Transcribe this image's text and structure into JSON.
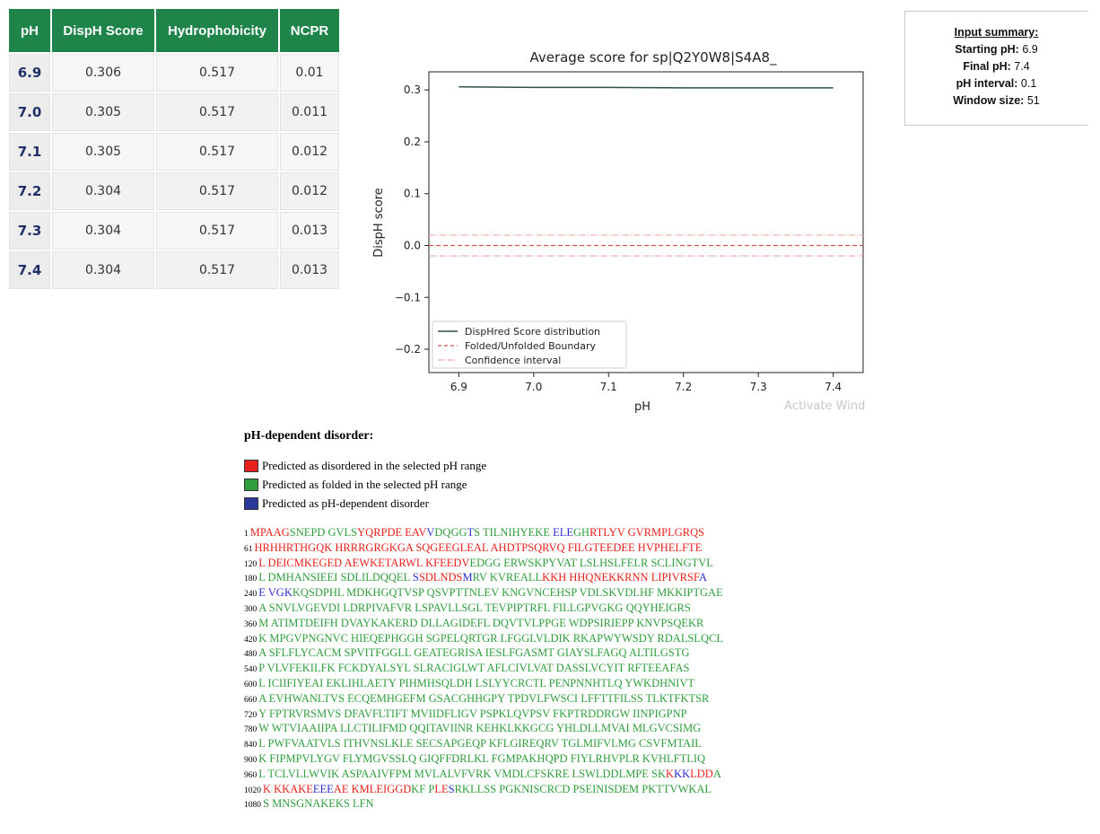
{
  "table": {
    "headers": [
      "pH",
      "DispH Score",
      "Hydrophobicity",
      "NCPR"
    ],
    "rows": [
      {
        "ph": "6.9",
        "disph": "0.306",
        "hydro": "0.517",
        "ncpr": "0.01"
      },
      {
        "ph": "7.0",
        "disph": "0.305",
        "hydro": "0.517",
        "ncpr": "0.011"
      },
      {
        "ph": "7.1",
        "disph": "0.305",
        "hydro": "0.517",
        "ncpr": "0.012"
      },
      {
        "ph": "7.2",
        "disph": "0.304",
        "hydro": "0.517",
        "ncpr": "0.012"
      },
      {
        "ph": "7.3",
        "disph": "0.304",
        "hydro": "0.517",
        "ncpr": "0.013"
      },
      {
        "ph": "7.4",
        "disph": "0.304",
        "hydro": "0.517",
        "ncpr": "0.013"
      }
    ]
  },
  "summary": {
    "title": "Input summary:",
    "items": [
      {
        "label": "Starting pH:",
        "value": "6.9"
      },
      {
        "label": "Final pH:",
        "value": "7.4"
      },
      {
        "label": "pH interval:",
        "value": "0.1"
      },
      {
        "label": "Window size:",
        "value": "51"
      }
    ]
  },
  "chart_data": {
    "type": "line",
    "title": "Average score for sp|Q2Y0W8|S4A8_",
    "xlabel": "pH",
    "ylabel": "DispH score",
    "xlim": [
      6.86,
      7.44
    ],
    "ylim": [
      -0.245,
      0.335
    ],
    "x_ticks": [
      6.9,
      7.0,
      7.1,
      7.2,
      7.3,
      7.4
    ],
    "x_tick_labels": [
      "6.9",
      "7.0",
      "7.1",
      "7.2",
      "7.3",
      "7.4"
    ],
    "y_ticks": [
      -0.2,
      -0.1,
      0.0,
      0.1,
      0.2,
      0.3
    ],
    "y_tick_labels": [
      "−0.2",
      "−0.1",
      "0.0",
      "0.1",
      "0.2",
      "0.3"
    ],
    "grid": false,
    "legend_position": "lower-left",
    "series": [
      {
        "name": "DispHred Score distribution",
        "style": "solid",
        "color": "#2f4f4f",
        "x": [
          6.9,
          7.0,
          7.1,
          7.2,
          7.3,
          7.4
        ],
        "y": [
          0.306,
          0.305,
          0.305,
          0.304,
          0.304,
          0.304
        ]
      },
      {
        "name": "Folded/Unfolded Boundary",
        "style": "dashed",
        "color": "#d9534f",
        "y_const": 0.0
      },
      {
        "name": "Confidence interval",
        "style": "dashdot",
        "color": "#f0a8a0",
        "y_const": [
          0.02,
          -0.02
        ]
      }
    ],
    "watermark": "Activate Windows"
  },
  "disorder": {
    "title": "pH-dependent disorder:",
    "legend": [
      {
        "color": "#e8221c",
        "label": "Predicted as disordered in the selected pH range"
      },
      {
        "color": "#2f9e3d",
        "label": "Predicted as folded in the selected pH range"
      },
      {
        "color": "#2b3a9a",
        "label": "Predicted as pH-dependent disorder"
      }
    ],
    "colors": {
      "r": "#e8221c",
      "g": "#2f9e3d",
      "b": "#2b2fd0"
    },
    "lines": [
      {
        "num": "1",
        "segs": [
          [
            "r",
            "MPAAG"
          ],
          [
            "g",
            "SNEPD GVLS"
          ],
          [
            "r",
            "YQRPDE EAV"
          ],
          [
            "b",
            "V"
          ],
          [
            "g",
            "DQGG"
          ],
          [
            "b",
            "T"
          ],
          [
            "g",
            "S TILNIHYEKE "
          ],
          [
            "b",
            "ELE"
          ],
          [
            "g",
            "GH"
          ],
          [
            "r",
            "RTLYV GVRMPLGRQS"
          ]
        ]
      },
      {
        "num": "61",
        "segs": [
          [
            "r",
            "HRHHRTHGQK HRRRGRGKGA SQGEEGLEAL AHDTPSQRVQ FILGTEEDEE HVPHELFTE"
          ]
        ]
      },
      {
        "num": "120",
        "segs": [
          [
            "r",
            "L DEICMKEGED AEWKETARWL KFEEDV"
          ],
          [
            "g",
            "EDGG ERWSKPYVAT LSLHSLFELR SCLINGTVL"
          ]
        ]
      },
      {
        "num": "180",
        "segs": [
          [
            "g",
            "L DMHANSIEEI SDLILDQQEL "
          ],
          [
            "b",
            "S"
          ],
          [
            "r",
            "SDLNDS"
          ],
          [
            "b",
            "M"
          ],
          [
            "g",
            "RV KVREALL"
          ],
          [
            "r",
            "KKH HHQNEKKRNN LIPIVRSF"
          ],
          [
            "b",
            "A"
          ]
        ]
      },
      {
        "num": "240",
        "segs": [
          [
            "b",
            "E VGK"
          ],
          [
            "g",
            "KQSDPHL MDKHGQTVSP QSVPTTNLEV KNGVNCEHSP VDLSKVDLHF MKKIPTGAE"
          ]
        ]
      },
      {
        "num": "300",
        "segs": [
          [
            "g",
            "A SNVLVGEVDI LDRPIVAFVR LSPAVLLSGL TEVPIPTRFL FILLGPVGKG QQYHEIGRS"
          ]
        ]
      },
      {
        "num": "360",
        "segs": [
          [
            "g",
            "M ATIMTDEIFH DVAYKAKERD DLLAGIDEFL DQVTVLPPGE WDPSIRIEPP KNVPSQEKR"
          ]
        ]
      },
      {
        "num": "420",
        "segs": [
          [
            "g",
            "K MPGVPNGNVC HIEQEPHGGH SGPELQRTGR LFGGLVLDIK RKAPWYWSDY RDALSLQCL"
          ]
        ]
      },
      {
        "num": "480",
        "segs": [
          [
            "g",
            "A SFLFLYCACM SPVITFGGLL GEATEGRISA IESLFGASMT GIAYSLFAGQ ALTILGSTG"
          ]
        ]
      },
      {
        "num": "540",
        "segs": [
          [
            "g",
            "P VLVFEKILFK FCKDYALSYL SLRACIGLWT AFLCIVLVAT DASSLVCYIT RFTEEAFAS"
          ]
        ]
      },
      {
        "num": "600",
        "segs": [
          [
            "g",
            "L ICIIFIYEAI EKLIHLAETY PIHMHSQLDH LSLYYCRCTL PENPNNHTLQ YWKDHNIVT"
          ]
        ]
      },
      {
        "num": "660",
        "segs": [
          [
            "g",
            "A EVHWANLTVS ECQEMHGEFM GSACGHHGPY TPDVLFWSCI LFFTTFILSS TLKTFKTSR"
          ]
        ]
      },
      {
        "num": "720",
        "segs": [
          [
            "g",
            "Y FPTRVRSMVS DFAVFLTIFT MVIIDFLIGV PSPKLQVPSV FKPTRDDRGW IINPIGPNP"
          ]
        ]
      },
      {
        "num": "780",
        "segs": [
          [
            "g",
            "W WTVIAAIIPA LLCTILIFMD QQITAVIINR KEHKLKKGCG YHLDLLMVAI MLGVCSIMG"
          ]
        ]
      },
      {
        "num": "840",
        "segs": [
          [
            "g",
            "L PWFVAATVLS ITHVNSLKLE SECSAPGEQP KFLGIREQRV TGLMIFVLMG CSVFMTAIL"
          ]
        ]
      },
      {
        "num": "900",
        "segs": [
          [
            "g",
            "K FIPMPVLYGV FLYMGVSSLQ GIQFFDRLKL FGMPAKHQPD FIYLRHVPLR KVHLFTLIQ"
          ]
        ]
      },
      {
        "num": "960",
        "segs": [
          [
            "g",
            "L TCLVLLWVIK ASPAAIVFPM MVLALVFVRK VMDLCFSKRE LSWLDDLMPE SK"
          ],
          [
            "r",
            "K"
          ],
          [
            "b",
            "KK"
          ],
          [
            "r",
            "LDD"
          ],
          [
            "g",
            "A"
          ]
        ]
      },
      {
        "num": "1020",
        "segs": [
          [
            "r",
            "K KKAKE"
          ],
          [
            "b",
            "EEE"
          ],
          [
            "r",
            "AE KMLEIGGD"
          ],
          [
            "g",
            "KF P"
          ],
          [
            "r",
            "LE"
          ],
          [
            "b",
            "S"
          ],
          [
            "g",
            "RKLLSS PGKNISCRCD PSEINISDEM PKTTVWKAL"
          ]
        ]
      },
      {
        "num": "1080",
        "segs": [
          [
            "g",
            "S MNSGNAKEKS LFN"
          ]
        ]
      }
    ]
  }
}
